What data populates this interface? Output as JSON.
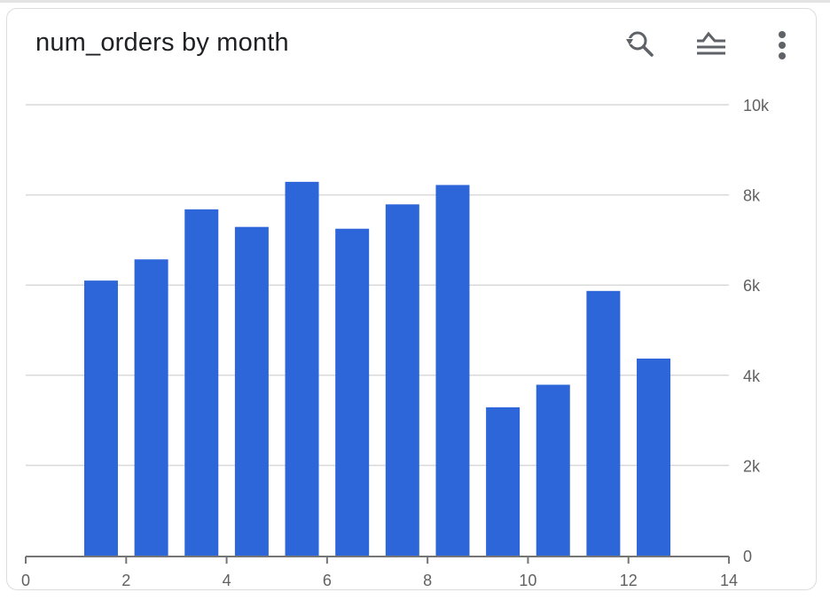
{
  "card": {
    "title": "num_orders by month"
  },
  "toolbar": {
    "icons": [
      "zoom-reset-icon",
      "series-toggle-icon",
      "more-options-icon"
    ]
  },
  "colors": {
    "bar": "#2d66d9",
    "grid": "#d9d9d9",
    "axis": "#757575",
    "tick_text": "#616161",
    "title": "#202124",
    "icon": "#5f6368"
  },
  "chart_data": {
    "type": "bar",
    "title": "num_orders by month",
    "xlabel": "",
    "ylabel": "",
    "x": [
      1.5,
      2.5,
      3.5,
      4.5,
      5.5,
      6.5,
      7.5,
      8.5,
      9.5,
      10.5,
      11.5,
      12.5
    ],
    "values": [
      6100,
      6570,
      7680,
      7290,
      8290,
      7250,
      7790,
      8220,
      3290,
      3790,
      5870,
      4370
    ],
    "xlim": [
      0,
      14
    ],
    "ylim": [
      0,
      10000
    ],
    "x_ticks": [
      0,
      2,
      4,
      6,
      8,
      10,
      12,
      14
    ],
    "x_tick_labels": [
      "0",
      "2",
      "4",
      "6",
      "8",
      "10",
      "12",
      "14"
    ],
    "y_ticks": [
      0,
      2000,
      4000,
      6000,
      8000,
      10000
    ],
    "y_tick_labels": [
      "0",
      "2k",
      "4k",
      "6k",
      "8k",
      "10k"
    ],
    "y_axis_side": "right",
    "grid": true,
    "legend": "none"
  }
}
